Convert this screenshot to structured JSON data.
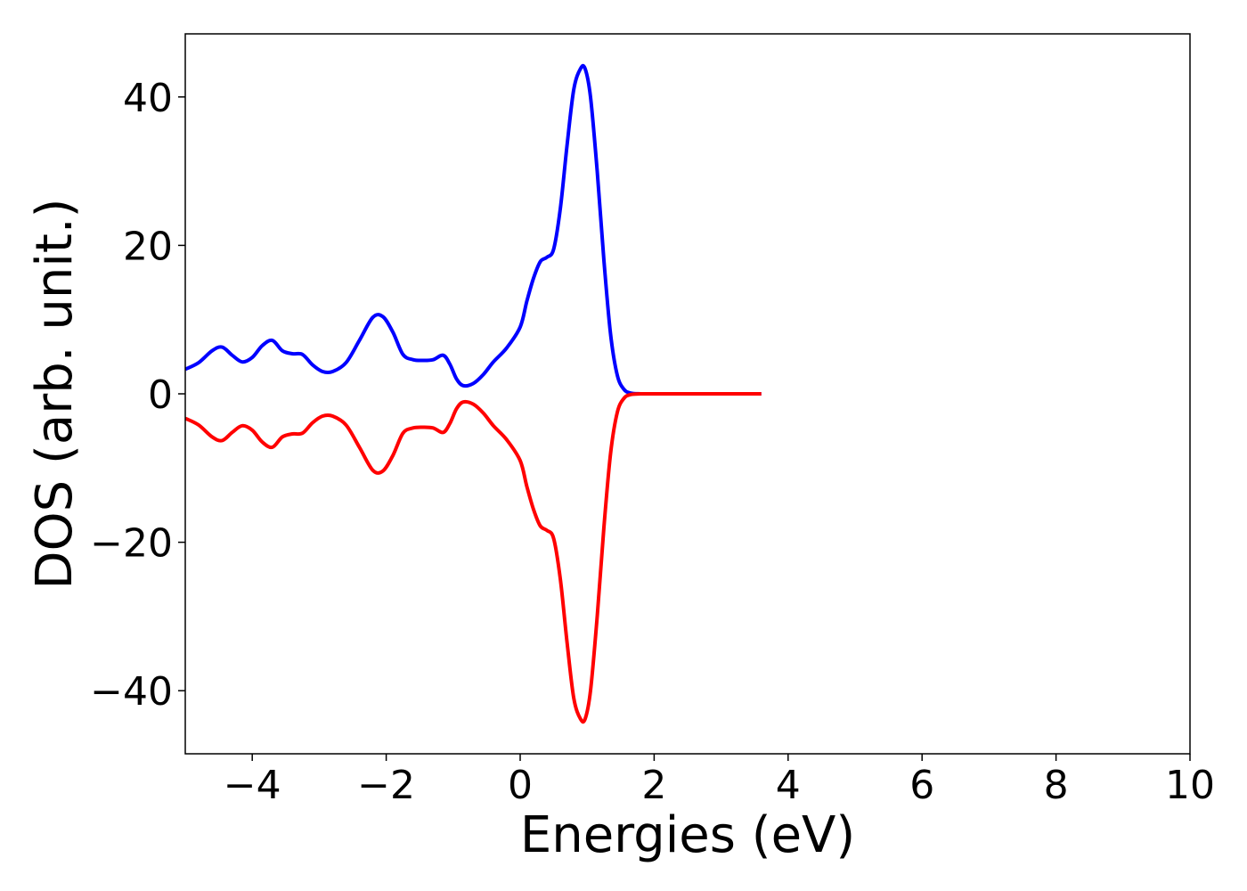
{
  "chart_data": {
    "type": "line",
    "title": "",
    "xlabel": "Energies (eV)",
    "ylabel": "DOS (arb. unit.)",
    "xlim": [
      -5,
      10
    ],
    "ylim": [
      -48.5,
      48.5
    ],
    "xticks": [
      -4,
      -2,
      0,
      2,
      4,
      6,
      8,
      10
    ],
    "xtick_labels": [
      "−4",
      "−2",
      "0",
      "2",
      "4",
      "6",
      "8",
      "10"
    ],
    "yticks": [
      -40,
      -20,
      0,
      20,
      40
    ],
    "ytick_labels": [
      "−40",
      "−20",
      "0",
      "20",
      "40"
    ],
    "grid": false,
    "legend": "none",
    "series": [
      {
        "color": "#0000ff",
        "x": [
          -5.0,
          -4.8,
          -4.6,
          -4.45,
          -4.3,
          -4.15,
          -4.0,
          -3.85,
          -3.7,
          -3.55,
          -3.4,
          -3.25,
          -3.1,
          -2.95,
          -2.8,
          -2.6,
          -2.4,
          -2.2,
          -2.05,
          -1.9,
          -1.75,
          -1.6,
          -1.45,
          -1.3,
          -1.15,
          -1.05,
          -0.95,
          -0.85,
          -0.7,
          -0.55,
          -0.4,
          -0.2,
          0.0,
          0.1,
          0.2,
          0.3,
          0.4,
          0.5,
          0.6,
          0.7,
          0.8,
          0.9,
          0.97,
          1.05,
          1.15,
          1.25,
          1.35,
          1.45,
          1.55,
          1.65,
          1.8,
          2.0,
          3.0,
          3.6
        ],
        "y": [
          3.3,
          4.2,
          5.8,
          6.3,
          5.2,
          4.3,
          4.9,
          6.5,
          7.2,
          5.8,
          5.4,
          5.3,
          3.9,
          3.0,
          3.0,
          4.2,
          7.2,
          10.3,
          10.4,
          8.3,
          5.3,
          4.6,
          4.5,
          4.6,
          5.2,
          4.0,
          2.0,
          1.1,
          1.4,
          2.6,
          4.3,
          6.2,
          9.0,
          12.5,
          15.6,
          17.8,
          18.4,
          19.5,
          25.0,
          33.5,
          41.0,
          43.8,
          43.8,
          40.0,
          30.0,
          18.0,
          8.0,
          2.5,
          0.6,
          0.1,
          0.0,
          0.0,
          0.0,
          0.0
        ]
      },
      {
        "color": "#ff0000",
        "x": [
          -5.0,
          -4.8,
          -4.6,
          -4.45,
          -4.3,
          -4.15,
          -4.0,
          -3.85,
          -3.7,
          -3.55,
          -3.4,
          -3.25,
          -3.1,
          -2.95,
          -2.8,
          -2.6,
          -2.4,
          -2.2,
          -2.05,
          -1.9,
          -1.75,
          -1.6,
          -1.45,
          -1.3,
          -1.15,
          -1.05,
          -0.95,
          -0.85,
          -0.7,
          -0.55,
          -0.4,
          -0.2,
          0.0,
          0.1,
          0.2,
          0.3,
          0.4,
          0.5,
          0.6,
          0.7,
          0.8,
          0.9,
          0.97,
          1.05,
          1.15,
          1.25,
          1.35,
          1.45,
          1.55,
          1.65,
          1.8,
          2.0,
          3.0,
          3.6
        ],
        "y": [
          -3.3,
          -4.2,
          -5.8,
          -6.3,
          -5.2,
          -4.3,
          -4.9,
          -6.5,
          -7.2,
          -5.8,
          -5.4,
          -5.3,
          -3.9,
          -3.0,
          -3.0,
          -4.2,
          -7.2,
          -10.3,
          -10.4,
          -8.3,
          -5.3,
          -4.6,
          -4.5,
          -4.6,
          -5.2,
          -4.0,
          -2.0,
          -1.1,
          -1.4,
          -2.6,
          -4.3,
          -6.2,
          -9.0,
          -12.5,
          -15.6,
          -17.8,
          -18.4,
          -19.5,
          -25.0,
          -33.5,
          -41.0,
          -43.8,
          -43.8,
          -40.0,
          -30.0,
          -18.0,
          -8.0,
          -2.5,
          -0.6,
          -0.1,
          0.0,
          0.0,
          0.0,
          0.0
        ]
      }
    ]
  }
}
